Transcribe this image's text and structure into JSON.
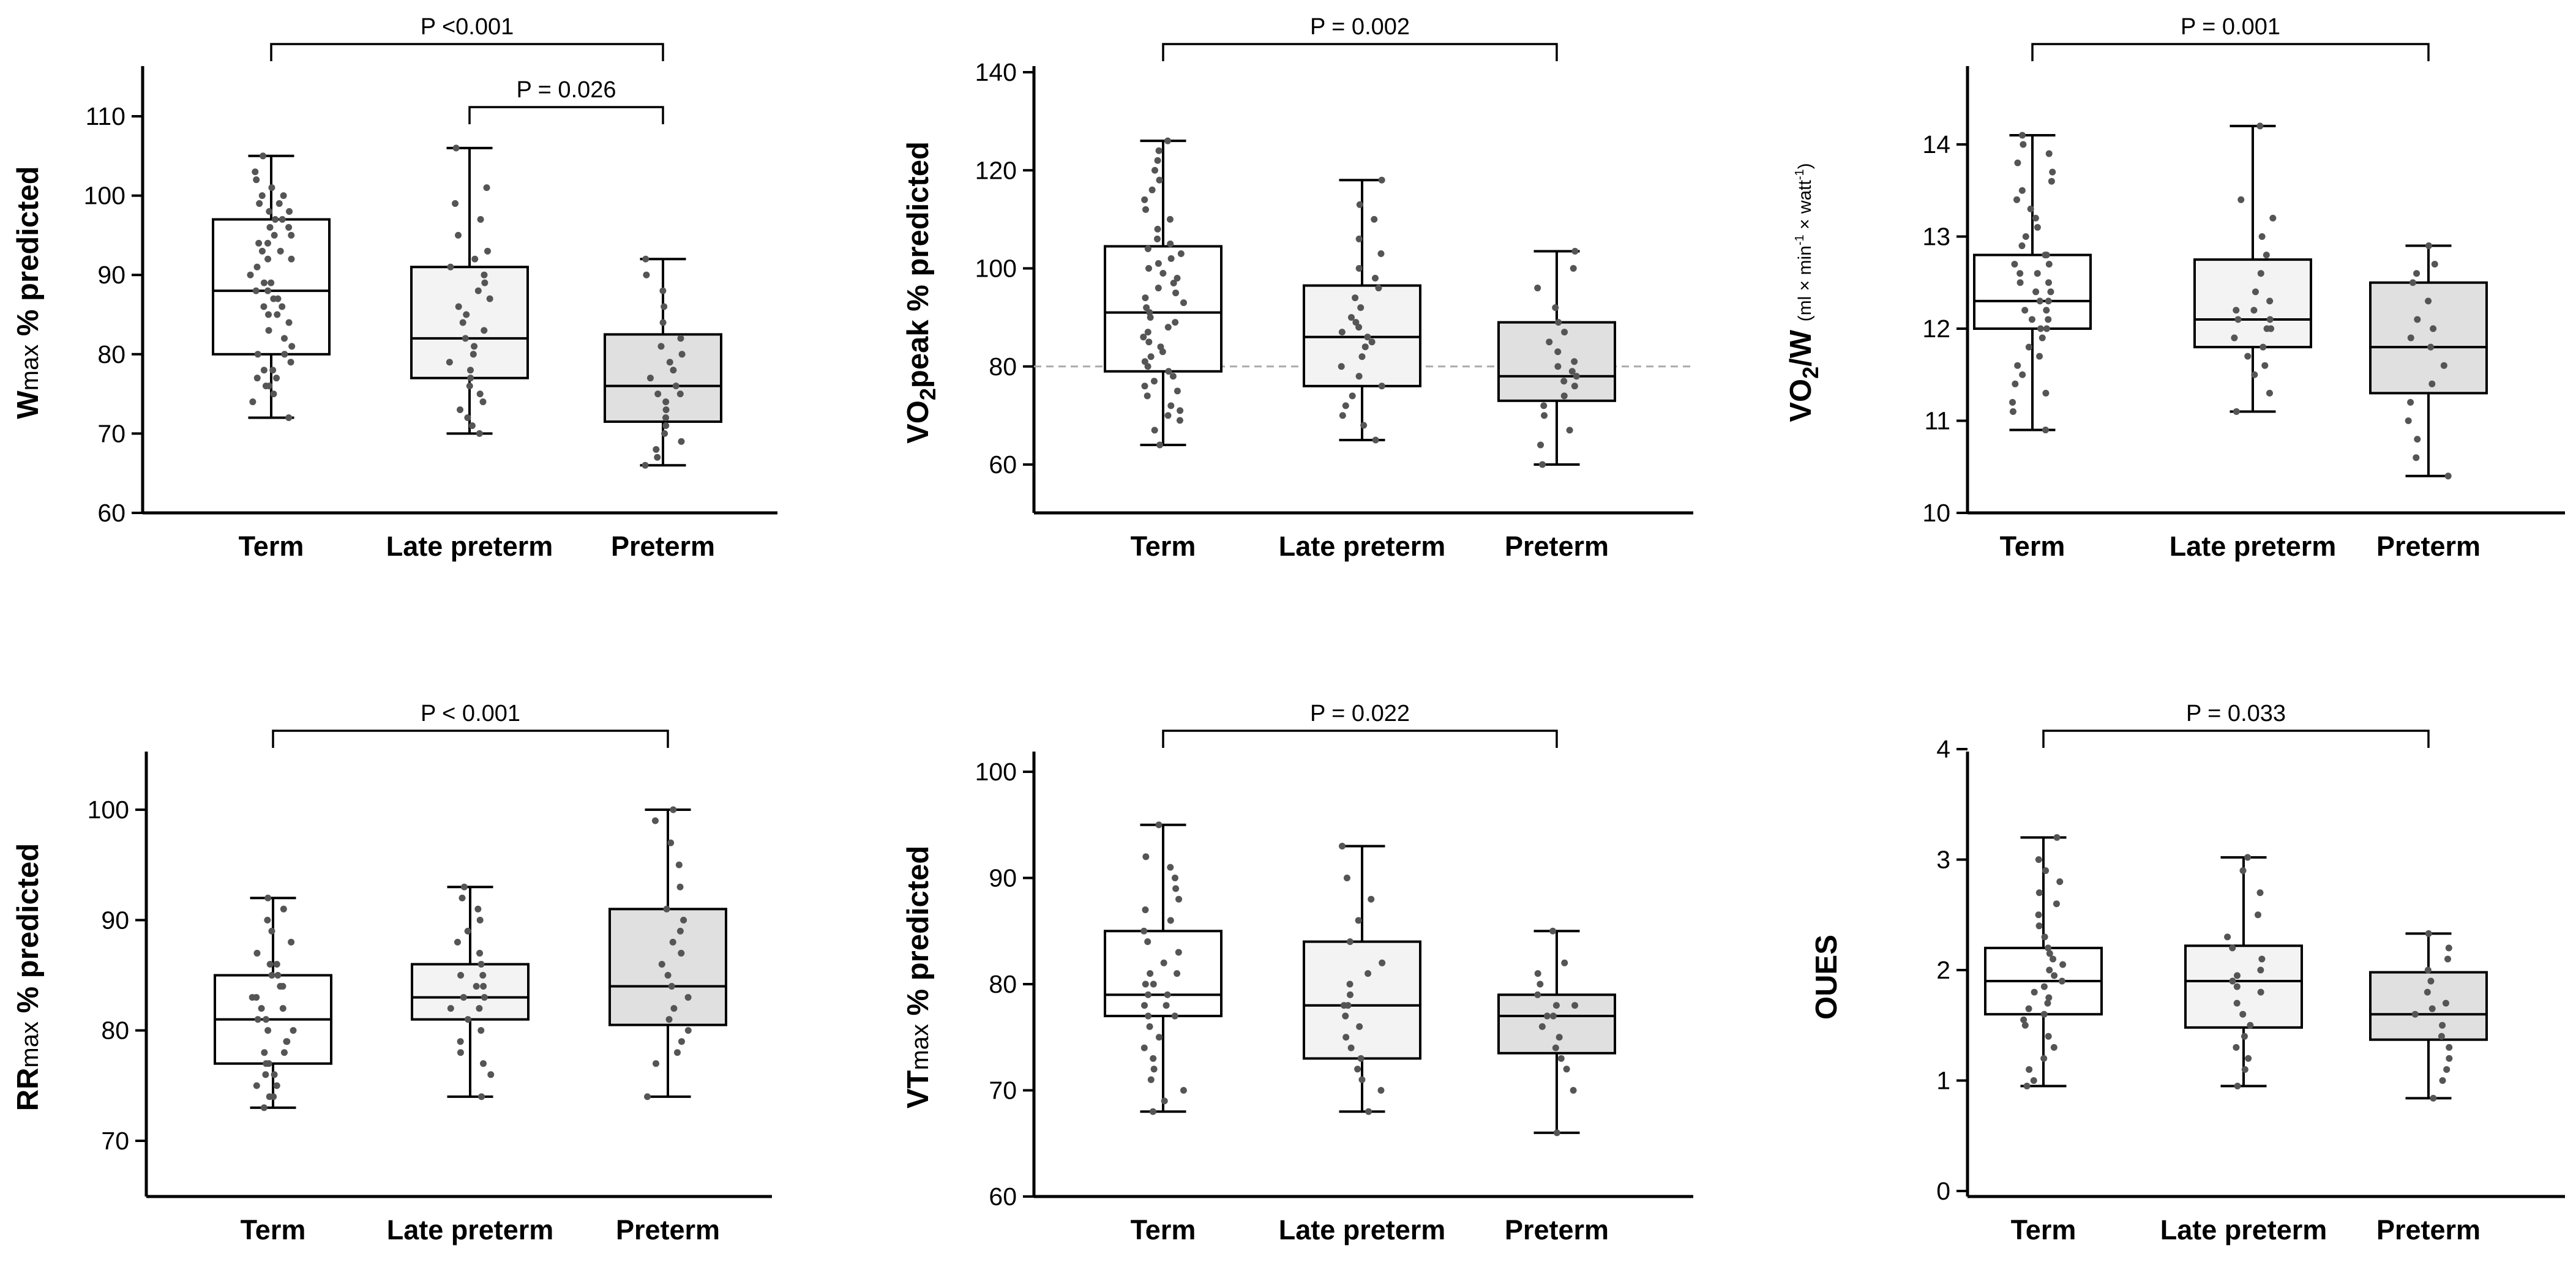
{
  "colors": {
    "box_fills": [
      "#ffffff",
      "#f3f3f3",
      "#e0e0e0"
    ],
    "dots": "#555555",
    "lines": "#000000",
    "reference_line": "#aaaaaa"
  },
  "chart_data": [
    {
      "type": "box",
      "ylabel": "Wmax % predicted",
      "ylabel_parts": [
        "W",
        "max",
        " % predicted"
      ],
      "categories": [
        "Term",
        "Late preterm",
        "Preterm"
      ],
      "ylim": [
        60,
        115
      ],
      "yticks": [
        60,
        70,
        80,
        90,
        100,
        110
      ],
      "boxes": [
        {
          "min": 72,
          "q1": 80,
          "median": 88,
          "q3": 97,
          "max": 105
        },
        {
          "min": 70,
          "q1": 77,
          "median": 82,
          "q3": 91,
          "max": 106
        },
        {
          "min": 66,
          "q1": 71.5,
          "median": 76,
          "q3": 82.5,
          "max": 92
        }
      ],
      "comparisons": [
        {
          "from": 0,
          "to": 2,
          "label": "P <0.001",
          "level": 1
        },
        {
          "from": 1,
          "to": 2,
          "label": "P = 0.026",
          "level": 0
        }
      ],
      "points": [
        [
          72,
          74,
          75,
          76,
          76,
          77,
          77,
          78,
          78,
          79,
          80,
          80,
          81,
          82,
          83,
          84,
          85,
          85,
          86,
          86,
          87,
          87,
          88,
          88,
          89,
          89,
          90,
          91,
          92,
          92,
          93,
          93,
          94,
          94,
          95,
          95,
          96,
          96,
          97,
          97,
          98,
          98,
          99,
          99,
          100,
          100,
          101,
          102,
          103,
          105
        ],
        [
          70,
          71,
          72,
          73,
          74,
          75,
          76,
          77,
          78,
          79,
          80,
          81,
          82,
          83,
          84,
          85,
          86,
          87,
          88,
          89,
          90,
          91,
          92,
          93,
          95,
          97,
          99,
          101,
          106
        ],
        [
          66,
          67,
          68,
          69,
          70,
          71,
          72,
          73,
          74,
          75,
          75,
          76,
          77,
          78,
          79,
          80,
          81,
          82,
          84,
          86,
          88,
          90,
          92
        ]
      ]
    },
    {
      "type": "box",
      "ylabel": "VO2peak % predicted",
      "ylabel_parts": [
        "VO",
        "2",
        "peak % predicted"
      ],
      "categories": [
        "Term",
        "Late preterm",
        "Preterm"
      ],
      "ylim": [
        50,
        140
      ],
      "yticks": [
        60,
        80,
        100,
        120,
        140
      ],
      "reference_line": 80,
      "boxes": [
        {
          "min": 64,
          "q1": 79,
          "median": 91,
          "q3": 104.5,
          "max": 126
        },
        {
          "min": 65,
          "q1": 76,
          "median": 86,
          "q3": 96.5,
          "max": 118
        },
        {
          "min": 60,
          "q1": 73,
          "median": 78,
          "q3": 89,
          "max": 103.5
        }
      ],
      "comparisons": [
        {
          "from": 0,
          "to": 2,
          "label": "P = 0.002",
          "level": 0
        }
      ],
      "points": [
        [
          64,
          67,
          69,
          70,
          71,
          72,
          74,
          75,
          76,
          77,
          78,
          79,
          80,
          81,
          82,
          83,
          84,
          85,
          86,
          87,
          88,
          89,
          90,
          91,
          92,
          93,
          94,
          95,
          96,
          97,
          98,
          99,
          100,
          101,
          102,
          103,
          104,
          105,
          106,
          108,
          110,
          112,
          114,
          116,
          118,
          120,
          122,
          124,
          126
        ],
        [
          65,
          68,
          70,
          72,
          74,
          76,
          78,
          80,
          82,
          84,
          85,
          86,
          87,
          88,
          89,
          90,
          92,
          94,
          96,
          98,
          100,
          103,
          106,
          110,
          113,
          118
        ],
        [
          60,
          64,
          67,
          70,
          72,
          74,
          76,
          77,
          78,
          79,
          80,
          81,
          83,
          85,
          87,
          89,
          92,
          96,
          100,
          103.5
        ]
      ]
    },
    {
      "type": "box",
      "ylabel": "VO2/W (ml × min-1 × watt-1)",
      "ylabel_parts": [
        "VO",
        "2",
        "/W",
        "(ml × min",
        "-1",
        " × watt",
        "-1",
        ")"
      ],
      "categories": [
        "Term",
        "Late preterm",
        "Preterm"
      ],
      "ylim": [
        10,
        14.8
      ],
      "yticks": [
        10,
        11,
        12,
        13,
        14
      ],
      "boxes": [
        {
          "min": 10.9,
          "q1": 12.0,
          "median": 12.3,
          "q3": 12.8,
          "max": 14.1
        },
        {
          "min": 11.1,
          "q1": 11.8,
          "median": 12.1,
          "q3": 12.75,
          "max": 14.2
        },
        {
          "min": 10.4,
          "q1": 11.3,
          "median": 11.8,
          "q3": 12.5,
          "max": 12.9
        }
      ],
      "comparisons": [
        {
          "from": 0,
          "to": 2,
          "label": "P = 0.001",
          "level": 0
        }
      ],
      "points": [
        [
          10.9,
          11.1,
          11.2,
          11.3,
          11.4,
          11.5,
          11.6,
          11.7,
          11.8,
          11.9,
          12.0,
          12.0,
          12.1,
          12.1,
          12.2,
          12.2,
          12.3,
          12.3,
          12.4,
          12.4,
          12.5,
          12.5,
          12.6,
          12.6,
          12.7,
          12.7,
          12.8,
          12.8,
          12.9,
          13.0,
          13.1,
          13.2,
          13.3,
          13.4,
          13.5,
          13.6,
          13.7,
          13.8,
          13.9,
          14.0,
          14.1
        ],
        [
          11.1,
          11.3,
          11.5,
          11.6,
          11.7,
          11.8,
          11.9,
          12.0,
          12.0,
          12.1,
          12.1,
          12.2,
          12.2,
          12.3,
          12.4,
          12.6,
          12.8,
          13.0,
          13.2,
          13.4,
          14.2
        ],
        [
          10.4,
          10.6,
          10.8,
          11.0,
          11.2,
          11.4,
          11.6,
          11.8,
          11.9,
          12.0,
          12.1,
          12.3,
          12.5,
          12.6,
          12.7,
          12.9
        ]
      ]
    },
    {
      "type": "box",
      "ylabel": "RRmax % predicted",
      "ylabel_parts": [
        "RR",
        "max",
        " % predicted"
      ],
      "categories": [
        "Term",
        "Late preterm",
        "Preterm"
      ],
      "ylim": [
        65,
        105
      ],
      "yticks": [
        70,
        80,
        90,
        100
      ],
      "boxes": [
        {
          "min": 73,
          "q1": 77,
          "median": 81,
          "q3": 85,
          "max": 92
        },
        {
          "min": 74,
          "q1": 81,
          "median": 83,
          "q3": 86,
          "max": 93
        },
        {
          "min": 74,
          "q1": 80.5,
          "median": 84,
          "q3": 91,
          "max": 100
        }
      ],
      "comparisons": [
        {
          "from": 0,
          "to": 2,
          "label": "P < 0.001",
          "level": 0
        }
      ],
      "points": [
        [
          73,
          74,
          74,
          75,
          75,
          76,
          76,
          77,
          77,
          78,
          78,
          79,
          79,
          80,
          80,
          81,
          81,
          82,
          82,
          83,
          83,
          84,
          84,
          85,
          85,
          86,
          86,
          87,
          88,
          89,
          90,
          91,
          92
        ],
        [
          74,
          76,
          77,
          78,
          79,
          80,
          81,
          82,
          82,
          83,
          83,
          84,
          84,
          85,
          85,
          86,
          87,
          88,
          89,
          90,
          91,
          92,
          93
        ],
        [
          74,
          77,
          78,
          79,
          80,
          81,
          82,
          83,
          84,
          85,
          86,
          87,
          88,
          89,
          90,
          91,
          93,
          95,
          97,
          99,
          100
        ]
      ]
    },
    {
      "type": "box",
      "ylabel": "VTmax % predicted",
      "ylabel_parts": [
        "VT",
        "max",
        " % predicted"
      ],
      "categories": [
        "Term",
        "Late preterm",
        "Preterm"
      ],
      "ylim": [
        60,
        102
      ],
      "yticks": [
        60,
        70,
        80,
        90,
        100
      ],
      "boxes": [
        {
          "min": 68,
          "q1": 77,
          "median": 79,
          "q3": 85,
          "max": 95
        },
        {
          "min": 68,
          "q1": 73,
          "median": 78,
          "q3": 84,
          "max": 93
        },
        {
          "min": 66,
          "q1": 73.5,
          "median": 77,
          "q3": 79,
          "max": 85
        }
      ],
      "comparisons": [
        {
          "from": 0,
          "to": 2,
          "label": "P = 0.022",
          "level": 0
        }
      ],
      "points": [
        [
          68,
          69,
          70,
          71,
          72,
          73,
          74,
          75,
          76,
          77,
          77,
          78,
          78,
          79,
          79,
          80,
          80,
          81,
          81,
          82,
          83,
          84,
          85,
          86,
          87,
          88,
          89,
          90,
          91,
          92,
          95
        ],
        [
          68,
          70,
          71,
          72,
          73,
          74,
          75,
          76,
          77,
          78,
          78,
          79,
          80,
          81,
          82,
          84,
          86,
          88,
          90,
          93
        ],
        [
          66,
          70,
          72,
          73,
          74,
          75,
          76,
          77,
          77,
          78,
          78,
          79,
          80,
          81,
          82,
          85
        ]
      ]
    },
    {
      "type": "box",
      "ylabel": "OUES",
      "ylabel_parts": [
        "OUES"
      ],
      "categories": [
        "Term",
        "Late preterm",
        "Preterm"
      ],
      "ylim": [
        0,
        4
      ],
      "yticks": [
        0,
        1,
        2,
        3,
        4
      ],
      "boxes": [
        {
          "min": 0.95,
          "q1": 1.6,
          "median": 1.9,
          "q3": 2.2,
          "max": 3.2
        },
        {
          "min": 0.95,
          "q1": 1.48,
          "median": 1.9,
          "q3": 2.22,
          "max": 3.02
        },
        {
          "min": 0.84,
          "q1": 1.37,
          "median": 1.6,
          "q3": 1.98,
          "max": 2.33
        }
      ],
      "comparisons": [
        {
          "from": 0,
          "to": 2,
          "label": "P = 0.033",
          "level": 0
        }
      ],
      "points": [
        [
          0.95,
          1.0,
          1.1,
          1.2,
          1.3,
          1.4,
          1.5,
          1.55,
          1.6,
          1.65,
          1.7,
          1.75,
          1.8,
          1.85,
          1.9,
          1.95,
          2.0,
          2.05,
          2.1,
          2.15,
          2.2,
          2.3,
          2.4,
          2.5,
          2.6,
          2.7,
          2.8,
          2.9,
          3.0,
          3.2
        ],
        [
          0.95,
          1.1,
          1.2,
          1.3,
          1.4,
          1.5,
          1.6,
          1.7,
          1.8,
          1.85,
          1.9,
          1.95,
          2.0,
          2.1,
          2.2,
          2.3,
          2.5,
          2.7,
          2.9,
          3.02
        ],
        [
          0.84,
          1.0,
          1.1,
          1.2,
          1.3,
          1.4,
          1.5,
          1.6,
          1.65,
          1.7,
          1.8,
          1.9,
          2.0,
          2.1,
          2.2,
          2.33
        ]
      ]
    }
  ]
}
